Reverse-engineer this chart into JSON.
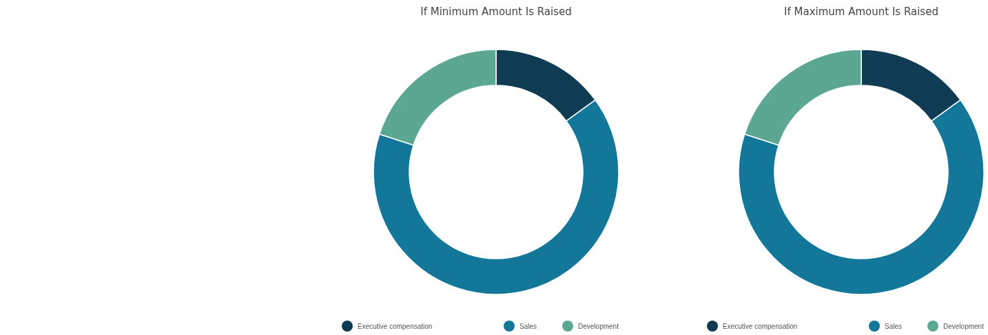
{
  "chart_data": [
    {
      "type": "donut",
      "title": "If Minimum Amount Is Raised",
      "categories": [
        "Executive compensation",
        "Sales",
        "Development"
      ],
      "values": [
        15,
        65,
        20
      ],
      "colors": [
        "#0f3b53",
        "#137799",
        "#5ca791"
      ],
      "legend": "bottom"
    },
    {
      "type": "donut",
      "title": "If Maximum Amount Is Raised",
      "categories": [
        "Executive compensation",
        "Sales",
        "Development"
      ],
      "values": [
        15,
        65,
        20
      ],
      "colors": [
        "#0f3b53",
        "#137799",
        "#5ca791"
      ],
      "legend": "bottom"
    }
  ]
}
